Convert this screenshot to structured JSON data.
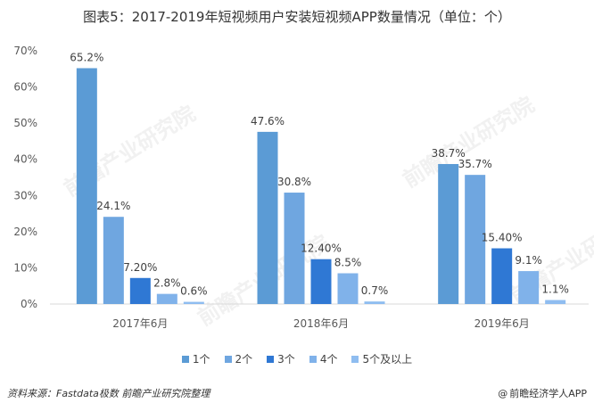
{
  "title": "图表5：2017-2019年短视频用户安装短视频APP数量情况（单位：个）",
  "chart_data": {
    "type": "bar",
    "categories": [
      "2017年6月",
      "2018年6月",
      "2019年6月"
    ],
    "series": [
      {
        "name": "1个",
        "values": [
          65.2,
          47.6,
          38.7
        ],
        "labels": [
          "65.2%",
          "47.6%",
          "38.7%"
        ],
        "color": "#5b9bd5"
      },
      {
        "name": "2个",
        "values": [
          24.1,
          30.8,
          35.7
        ],
        "labels": [
          "24.1%",
          "30.8%",
          "35.7%"
        ],
        "color": "#6fa6e0"
      },
      {
        "name": "3个",
        "values": [
          7.2,
          12.4,
          15.4
        ],
        "labels": [
          "7.20%",
          "12.40%",
          "15.40%"
        ],
        "color": "#2f78d4"
      },
      {
        "name": "4个",
        "values": [
          2.8,
          8.5,
          9.1
        ],
        "labels": [
          "2.8%",
          "8.5%",
          "9.1%"
        ],
        "color": "#80b2ea"
      },
      {
        "name": "5个及以上",
        "values": [
          0.6,
          0.7,
          1.1
        ],
        "labels": [
          "0.6%",
          "0.7%",
          "1.1%"
        ],
        "color": "#8fbdf0"
      }
    ],
    "yticks": [
      "0%",
      "10%",
      "20%",
      "30%",
      "40%",
      "50%",
      "60%",
      "70%"
    ],
    "ylim": [
      0,
      70
    ]
  },
  "watermark": "前瞻产业研究院",
  "source": "资料来源：Fastdata极数 前瞻产业研究院整理",
  "brand": "前瞻经济学人APP",
  "brand_symbol": "@"
}
